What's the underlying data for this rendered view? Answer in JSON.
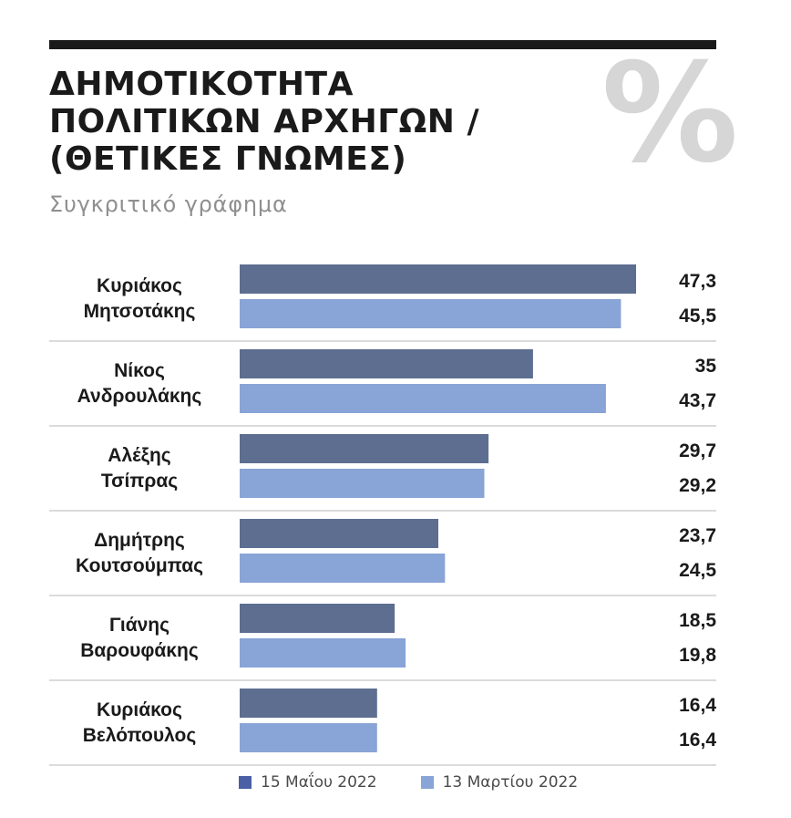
{
  "header": {
    "title_lines": [
      "ΔΗΜΟΤΙΚΟΤΗΤΑ",
      "ΠΟΛΙΤΙΚΩΝ ΑΡΧΗΓΩΝ /",
      "(ΘΕΤΙΚΕΣ ΓΝΩΜΕΣ)"
    ],
    "percent_symbol": "%",
    "subtitle": "Συγκριτικό γράφημα"
  },
  "colors": {
    "series_may": "#5d6e90",
    "series_march": "#89a4d6",
    "divider": "#cfcfcf"
  },
  "chart_data": {
    "type": "bar",
    "orientation": "horizontal",
    "title": "ΔΗΜΟΤΙΚΟΤΗΤΑ ΠΟΛΙΤΙΚΩΝ ΑΡΧΗΓΩΝ / (ΘΕΤΙΚΕΣ ΓΝΩΜΕΣ)",
    "subtitle": "Συγκριτικό γράφημα",
    "categories": [
      [
        "Κυριάκος",
        "Μητσοτάκης"
      ],
      [
        "Νίκος",
        "Ανδρουλάκης"
      ],
      [
        "Αλέξης",
        "Τσίπρας"
      ],
      [
        "Δημήτρης",
        "Κουτσούμπας"
      ],
      [
        "Γιάνης",
        "Βαρουφάκης"
      ],
      [
        "Κυριάκος",
        "Βελόπουλος"
      ]
    ],
    "series": [
      {
        "name": "15 Μαΐου 2022",
        "values": [
          47.3,
          35,
          29.7,
          23.7,
          18.5,
          16.4
        ],
        "labels": [
          "47,3",
          "35",
          "29,7",
          "23,7",
          "18,5",
          "16,4"
        ]
      },
      {
        "name": "13 Μαρτίου 2022",
        "values": [
          45.5,
          43.7,
          29.2,
          24.5,
          19.8,
          16.4
        ],
        "labels": [
          "45,5",
          "43,7",
          "29,2",
          "24,5",
          "19,8",
          "16,4"
        ]
      }
    ],
    "xlim": [
      0,
      47.3
    ],
    "grid": false,
    "legend_position": "bottom"
  },
  "legend": {
    "items": [
      "15 Μαΐου 2022",
      "13 Μαρτίου 2022"
    ]
  }
}
